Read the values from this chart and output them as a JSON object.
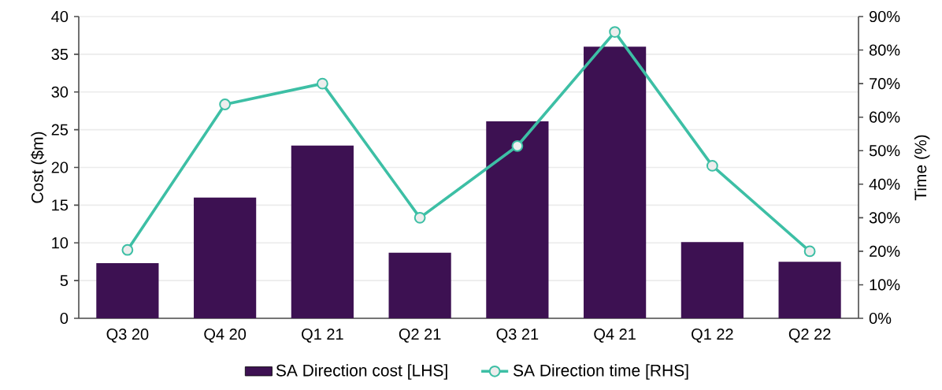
{
  "chart_data": {
    "type": "bar",
    "ylabel": "Cost ($m)",
    "y2label": "Time (%)",
    "categories": [
      "Q3 20",
      "Q4 20",
      "Q1 21",
      "Q2 21",
      "Q3 21",
      "Q4 21",
      "Q1 22",
      "Q2 22"
    ],
    "series": [
      {
        "name": "SA Direction cost [LHS]",
        "color": "#3d1152",
        "values": [
          7.3,
          16,
          22.9,
          8.7,
          26.1,
          36,
          10.1,
          7.5
        ]
      },
      {
        "name": "SA Direction time [RHS]",
        "type": "line",
        "axis": "y2",
        "color": "#3dbfa5",
        "marker": "circle",
        "values": [
          20.4,
          63.8,
          70,
          30,
          51.4,
          85.4,
          45.5,
          20
        ]
      }
    ],
    "ylim": [
      0,
      40
    ],
    "yticks": [
      0,
      5,
      10,
      15,
      20,
      25,
      30,
      35,
      40
    ],
    "y2lim": [
      0,
      90
    ],
    "y2ticks": [
      {
        "value": 0,
        "label": "0%"
      },
      {
        "value": 10,
        "label": "10%"
      },
      {
        "value": 20,
        "label": "20%"
      },
      {
        "value": 30,
        "label": "30%"
      },
      {
        "value": 40,
        "label": "40%"
      },
      {
        "value": 50,
        "label": "50%"
      },
      {
        "value": 60,
        "label": "60%"
      },
      {
        "value": 70,
        "label": "70%"
      },
      {
        "value": 80,
        "label": "80%"
      },
      {
        "value": 90,
        "label": "90%"
      }
    ],
    "grid": "y",
    "legend": "bottom"
  }
}
